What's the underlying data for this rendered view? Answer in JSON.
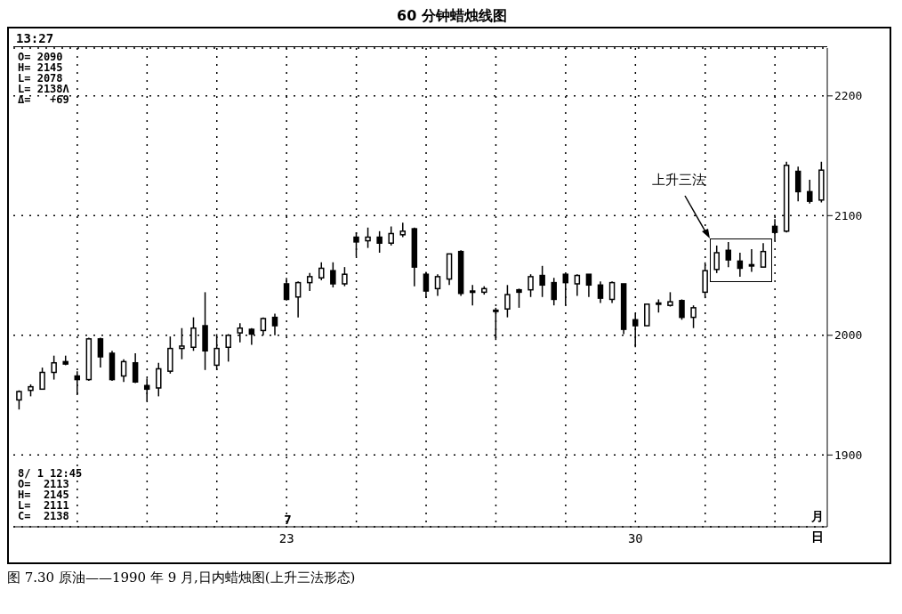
{
  "chart_data": {
    "type": "candlestick",
    "title": "60 分钟蜡烛线图",
    "categories": [
      null,
      null,
      null,
      null,
      null,
      null,
      null,
      null,
      null,
      null,
      null,
      null,
      null,
      null,
      null,
      null,
      null,
      null,
      null,
      null,
      null,
      null,
      null,
      "23",
      null,
      null,
      null,
      null,
      null,
      null,
      null,
      null,
      null,
      null,
      null,
      null,
      null,
      null,
      null,
      null,
      null,
      null,
      null,
      null,
      null,
      null,
      null,
      null,
      null,
      null,
      null,
      null,
      null,
      "30",
      null,
      null,
      null,
      null,
      null,
      null,
      null,
      null,
      null,
      null,
      null,
      null,
      null,
      null,
      null,
      null
    ],
    "ohlc": [
      [
        1946,
        1954,
        1938,
        1953
      ],
      [
        1954,
        1959,
        1949,
        1957
      ],
      [
        1955,
        1973,
        1955,
        1969
      ],
      [
        1969,
        1983,
        1963,
        1977
      ],
      [
        1978,
        1983,
        1975,
        1976
      ],
      [
        1966,
        1970,
        1950,
        1963
      ],
      [
        1963,
        1998,
        1962,
        1997
      ],
      [
        1997,
        1998,
        1973,
        1982
      ],
      [
        1985,
        1987,
        1962,
        1963
      ],
      [
        1966,
        1980,
        1961,
        1978
      ],
      [
        1977,
        1985,
        1960,
        1961
      ],
      [
        1958,
        1964,
        1945,
        1955
      ],
      [
        1956,
        1977,
        1949,
        1972
      ],
      [
        1970,
        1999,
        1968,
        1989
      ],
      [
        1989,
        2006,
        1980,
        1991
      ],
      [
        1990,
        2015,
        1987,
        2006
      ],
      [
        2008,
        2036,
        1971,
        1987
      ],
      [
        1975,
        2001,
        1971,
        1989
      ],
      [
        1990,
        2001,
        1978,
        2000
      ],
      [
        2002,
        2010,
        1994,
        2006
      ],
      [
        2005,
        2006,
        1992,
        2001
      ],
      [
        2004,
        2015,
        2000,
        2014
      ],
      [
        2015,
        2018,
        2000,
        2008
      ],
      [
        2043,
        2048,
        2029,
        2030
      ],
      [
        2032,
        2045,
        2015,
        2044
      ],
      [
        2044,
        2052,
        2037,
        2049
      ],
      [
        2048,
        2061,
        2046,
        2056
      ],
      [
        2054,
        2061,
        2040,
        2043
      ],
      [
        2043,
        2057,
        2041,
        2051
      ],
      [
        2082,
        2086,
        2066,
        2078
      ],
      [
        2079,
        2090,
        2073,
        2082
      ],
      [
        2082,
        2087,
        2069,
        2077
      ],
      [
        2077,
        2091,
        2075,
        2085
      ],
      [
        2084,
        2094,
        2082,
        2087
      ],
      [
        2089,
        2090,
        2041,
        2057
      ],
      [
        2051,
        2053,
        2031,
        2037
      ],
      [
        2039,
        2051,
        2033,
        2049
      ],
      [
        2047,
        2068,
        2042,
        2068
      ],
      [
        2070,
        2071,
        2033,
        2035
      ],
      [
        2037,
        2042,
        2025,
        2036
      ],
      [
        2036,
        2041,
        2034,
        2039
      ],
      [
        2021,
        2023,
        1996,
        2020
      ],
      [
        2022,
        2042,
        2015,
        2034
      ],
      [
        2038,
        2039,
        2023,
        2036
      ],
      [
        2038,
        2051,
        2032,
        2049
      ],
      [
        2050,
        2058,
        2032,
        2042
      ],
      [
        2044,
        2048,
        2025,
        2030
      ],
      [
        2051,
        2051,
        2025,
        2044
      ],
      [
        2043,
        2051,
        2033,
        2050
      ],
      [
        2051,
        2051,
        2032,
        2042
      ],
      [
        2042,
        2045,
        2027,
        2031
      ],
      [
        2030,
        2045,
        2027,
        2044
      ],
      [
        2043,
        2043,
        2001,
        2005
      ],
      [
        2013,
        2018,
        1990,
        2008
      ],
      [
        2008,
        2026,
        2008,
        2026
      ],
      [
        2026,
        2030,
        2019,
        2027
      ],
      [
        2025,
        2036,
        2024,
        2028
      ],
      [
        2029,
        2030,
        2013,
        2015
      ],
      [
        2015,
        2025,
        2006,
        2023
      ],
      [
        2036,
        2061,
        2031,
        2054
      ],
      [
        2055,
        2075,
        2052,
        2069
      ],
      [
        2071,
        2078,
        2057,
        2063
      ],
      [
        2062,
        2069,
        2049,
        2056
      ],
      [
        2059,
        2072,
        2053,
        2058
      ],
      [
        2057,
        2077,
        2057,
        2070
      ],
      [
        2091,
        2097,
        2079,
        2086
      ],
      [
        2087,
        2145,
        2086,
        2142
      ],
      [
        2137,
        2141,
        2112,
        2120
      ],
      [
        2120,
        2130,
        2110,
        2112
      ],
      [
        2113,
        2145,
        2111,
        2138
      ]
    ],
    "color": "#000000",
    "ylim": [
      1840,
      2240
    ],
    "yticks": [
      1900,
      2000,
      2100,
      2200
    ],
    "grid": true,
    "annotations": [
      "13:27",
      "O= 2090\nH= 2145\nL= 2078\nL= 2138Λ\nΔ=   +69",
      "8/ 1 12:45\nO=  2113\nH=  2145\nL=  2111\nC=  2138",
      "上升三法",
      "7",
      "月",
      "日",
      "图 7.30  原油——1990 年 9 月,日内蜡烛图(上升三法形态)"
    ]
  }
}
